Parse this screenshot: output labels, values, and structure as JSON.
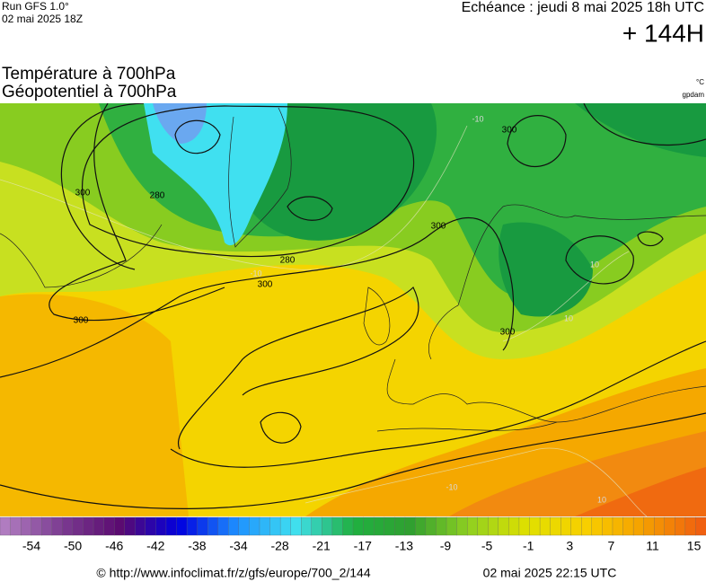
{
  "header": {
    "run": "Run GFS 1.0°",
    "run_date": "02 mai 2025 18Z",
    "echeance": "Echéance : jeudi 8 mai 2025 18h UTC",
    "lead": "+ 144H",
    "title_temperature": "Température à 700hPa",
    "title_geopotential": "Géopotentiel à 700hPa",
    "unit_temperature": "°C",
    "unit_geopotential": "gpdam"
  },
  "map": {
    "contour_labels": [
      "280",
      "280",
      "300",
      "300",
      "300",
      "300",
      "300",
      "300"
    ],
    "isotherm_labels": [
      "-10",
      "-10",
      "10",
      "10",
      "-10",
      "10"
    ]
  },
  "colorbar": {
    "colors": [
      "#b07cc0",
      "#7a3a90",
      "#5a0a70",
      "#0000e0",
      "#1e90ff",
      "#40e0f0",
      "#20b040",
      "#30a030",
      "#90d020",
      "#e0e000",
      "#f8d000",
      "#f5a000",
      "#f06010"
    ],
    "labels": [
      -54,
      -50,
      -46,
      -42,
      -38,
      -34,
      -28,
      -21,
      -17,
      -13,
      -9,
      -5,
      -1,
      3,
      7,
      11,
      15
    ]
  },
  "footer": {
    "url": "© http://www.infoclimat.fr/z/gfs/europe/700_2/144",
    "generated": "02 mai 2025 22:15 UTC"
  }
}
